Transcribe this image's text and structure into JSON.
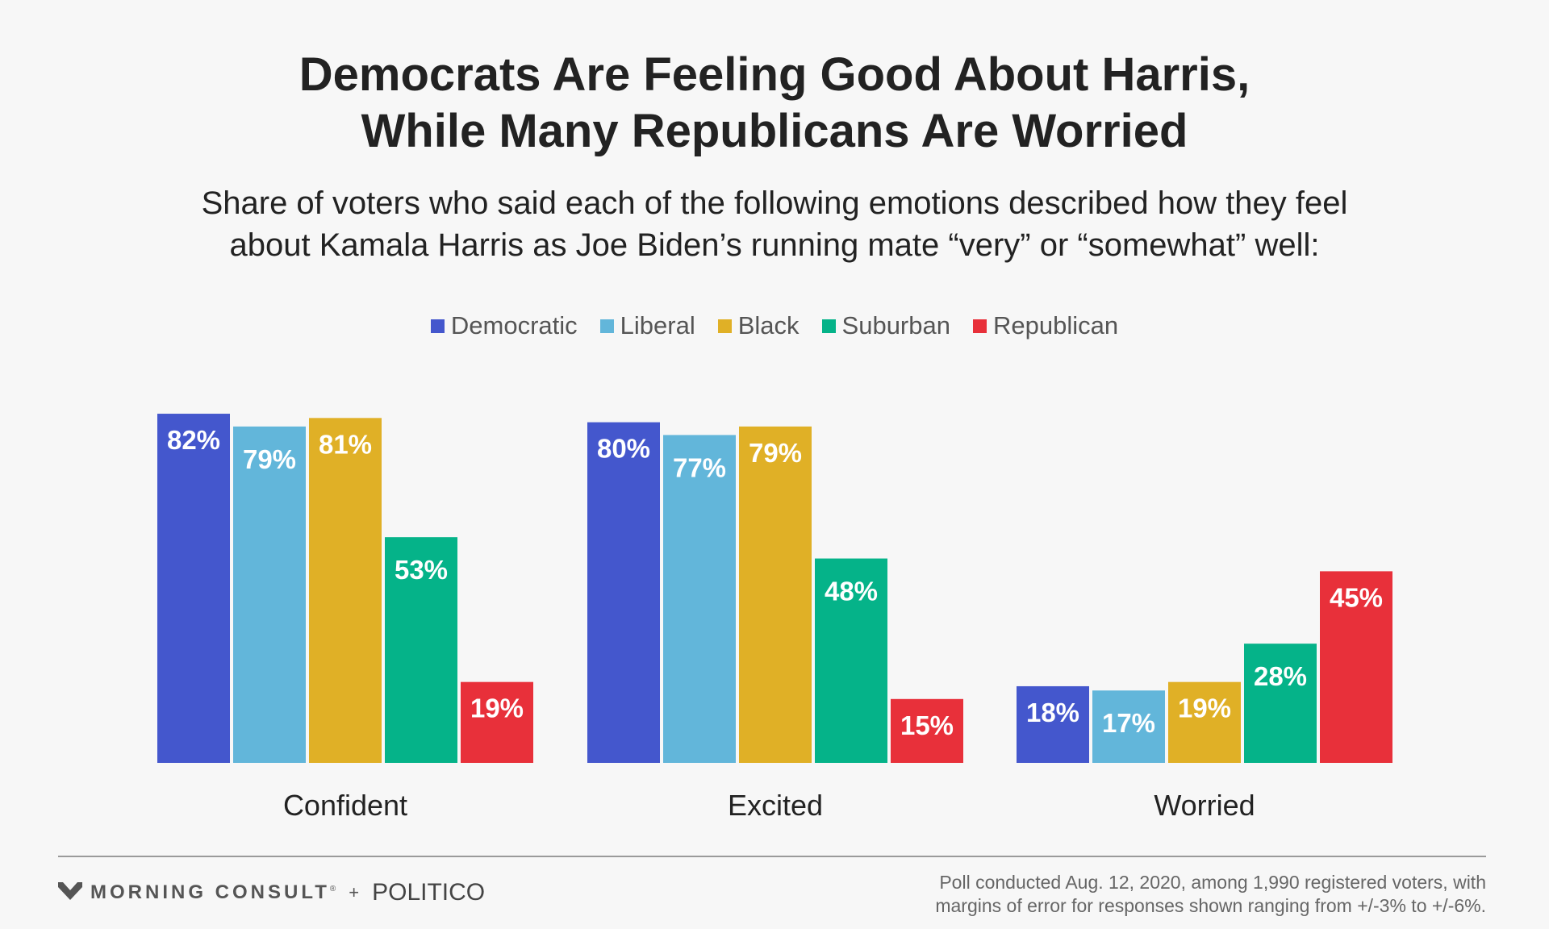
{
  "header": {
    "title_line1": "Democrats Are Feeling Good About Harris,",
    "title_line2": "While Many Republicans Are Worried",
    "subtitle_line1": "Share of voters who said each of the following emotions described how they feel",
    "subtitle_line2": "about Kamala Harris as Joe Biden’s running mate “very” or “somewhat” well:"
  },
  "chart_data": {
    "type": "bar",
    "categories": [
      "Confident",
      "Excited",
      "Worried"
    ],
    "series": [
      {
        "name": "Democratic",
        "color": "#4457cd",
        "values": [
          82,
          80,
          18
        ],
        "labels": [
          "82%",
          "80%",
          "18%"
        ]
      },
      {
        "name": "Liberal",
        "color": "#62b6da",
        "values": [
          79,
          77,
          17
        ],
        "labels": [
          "79%",
          "77%",
          "17%"
        ]
      },
      {
        "name": "Black",
        "color": "#e0b026",
        "values": [
          81,
          79,
          19
        ],
        "labels": [
          "81%",
          "79%",
          "19%"
        ]
      },
      {
        "name": "Suburban",
        "color": "#05b389",
        "values": [
          53,
          48,
          28
        ],
        "labels": [
          "53%",
          "48%",
          "28%"
        ]
      },
      {
        "name": "Republican",
        "color": "#e8303a",
        "values": [
          19,
          15,
          45
        ],
        "labels": [
          "19%",
          "15%",
          "45%"
        ]
      }
    ],
    "ylim": [
      0,
      100
    ],
    "legend_position": "top-center",
    "grid": false
  },
  "footer": {
    "brand_morning_consult": "MORNING CONSULT",
    "brand_registered_mark": "®",
    "brand_plus": "+",
    "brand_politico": "POLITICO",
    "note_line1": "Poll conducted Aug. 12, 2020, among 1,990 registered voters, with",
    "note_line2": "margins of error for responses shown ranging from +/-3% to +/-6%."
  }
}
